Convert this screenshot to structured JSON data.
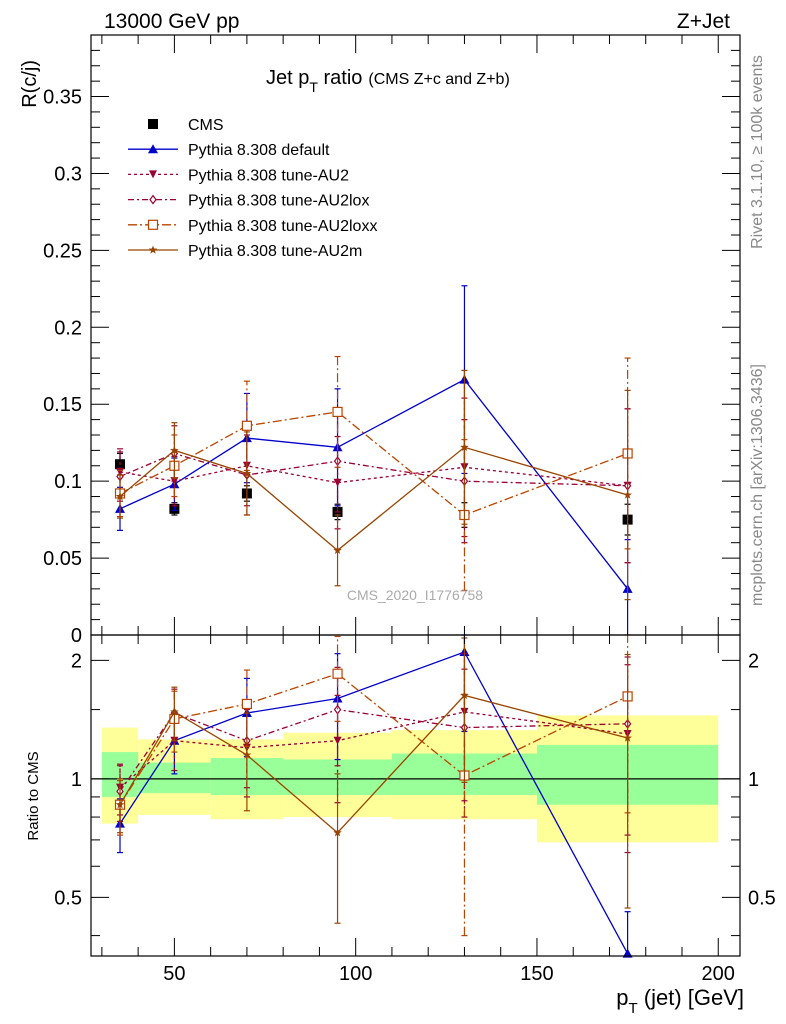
{
  "header": {
    "left": "13000 GeV pp",
    "right": "Z+Jet"
  },
  "side_labels": {
    "top": "Rivet 3.1.10, ≥ 100k events",
    "bottom": "mcplots.cern.ch [arXiv:1306.3436]"
  },
  "watermark": "CMS_2020_I1776758",
  "colors": {
    "cms": "#000000",
    "default": "#0000cc",
    "au2": "#990033",
    "au2lox": "#990033",
    "au2loxx": "#bb4400",
    "au2m": "#994400",
    "band_outer": "#ffff99",
    "band_inner": "#99ff99"
  },
  "chart_data": [
    {
      "type": "line",
      "title_main": "Jet p",
      "title_sub": "T",
      "title_rest": " ratio",
      "title_note": "(CMS  Z+c and Z+b)",
      "ylabel": "R(c/j)",
      "ylim": [
        0,
        0.39
      ],
      "yticks": [
        0,
        0.05,
        0.1,
        0.15,
        0.2,
        0.25,
        0.3,
        0.35
      ],
      "ytick_labels": [
        "0",
        "0.05",
        "0.1",
        "0.15",
        "0.2",
        "0.25",
        "0.3",
        "0.35"
      ],
      "xlim": [
        27,
        206
      ],
      "legend_position": "top-left",
      "series": [
        {
          "key": "cms",
          "name": "CMS",
          "marker": "square-filled",
          "dash": "none",
          "x": [
            35,
            50,
            70,
            95,
            130,
            175
          ],
          "y": [
            0.111,
            0.082,
            0.092,
            0.08,
            0.078,
            0.075
          ],
          "err": [
            0.007,
            0.004,
            0.005,
            0.005,
            0.008,
            0.01
          ]
        },
        {
          "key": "default",
          "name": "Pythia 8.308 default",
          "marker": "triangle-up",
          "dash": "none",
          "x": [
            35,
            50,
            70,
            95,
            130,
            175
          ],
          "y": [
            0.082,
            0.098,
            0.128,
            0.122,
            0.166,
            0.03
          ],
          "err": [
            0.014,
            0.017,
            0.029,
            0.038,
            0.061,
            0.032
          ]
        },
        {
          "key": "au2",
          "name": "Pythia 8.308 tune-AU2",
          "marker": "triangle-down",
          "dash": "3,3",
          "x": [
            35,
            50,
            70,
            95,
            130,
            175
          ],
          "y": [
            0.106,
            0.1,
            0.11,
            0.099,
            0.109,
            0.097
          ],
          "err": [
            0.015,
            0.016,
            0.026,
            0.03,
            0.045,
            0.05
          ]
        },
        {
          "key": "au2lox",
          "name": "Pythia 8.308 tune-AU2lox",
          "marker": "diamond-open",
          "dash": "6,3,2,3",
          "x": [
            35,
            50,
            70,
            95,
            130,
            175
          ],
          "y": [
            0.103,
            0.118,
            0.104,
            0.113,
            0.1,
            0.097
          ],
          "err": [
            0.016,
            0.018,
            0.026,
            0.033,
            0.04,
            0.05
          ]
        },
        {
          "key": "au2loxx",
          "name": "Pythia 8.308 tune-AU2loxx",
          "marker": "square-open",
          "dash": "9,3,2,3",
          "x": [
            35,
            50,
            70,
            95,
            130,
            175
          ],
          "y": [
            0.092,
            0.11,
            0.136,
            0.145,
            0.078,
            0.118
          ],
          "err": [
            0.015,
            0.02,
            0.029,
            0.036,
            0.049,
            0.062
          ]
        },
        {
          "key": "au2m",
          "name": "Pythia 8.308 tune-AU2m",
          "marker": "star",
          "dash": "none",
          "x": [
            35,
            50,
            70,
            95,
            130,
            175
          ],
          "y": [
            0.09,
            0.12,
            0.105,
            0.055,
            0.122,
            0.091
          ],
          "err": [
            0.014,
            0.018,
            0.027,
            0.023,
            0.05,
            0.068
          ]
        }
      ]
    },
    {
      "type": "line",
      "ylabel": "Ratio to CMS",
      "xlabel_main": "p",
      "xlabel_sub": "T",
      "xlabel_rest": " (jet) [GeV]",
      "log_y": true,
      "ylim": [
        0.355,
        2.32
      ],
      "yticks": [
        0.5,
        1,
        2
      ],
      "ytick_labels": [
        "0.5",
        "1",
        "2"
      ],
      "xlim": [
        27,
        206
      ],
      "xticks": [
        50,
        100,
        150,
        200
      ],
      "xtick_labels": [
        "50",
        "100",
        "150",
        "200"
      ],
      "reference": 1,
      "bands": [
        {
          "x": [
            30,
            40
          ],
          "outer": [
            0.77,
            1.35
          ],
          "inner": [
            0.9,
            1.17
          ]
        },
        {
          "x": [
            40,
            60
          ],
          "outer": [
            0.81,
            1.26
          ],
          "inner": [
            0.92,
            1.1
          ]
        },
        {
          "x": [
            60,
            80
          ],
          "outer": [
            0.79,
            1.26
          ],
          "inner": [
            0.91,
            1.13
          ]
        },
        {
          "x": [
            80,
            110
          ],
          "outer": [
            0.8,
            1.31
          ],
          "inner": [
            0.91,
            1.12
          ]
        },
        {
          "x": [
            110,
            150
          ],
          "outer": [
            0.79,
            1.33
          ],
          "inner": [
            0.91,
            1.16
          ]
        },
        {
          "x": [
            150,
            200
          ],
          "outer": [
            0.69,
            1.45
          ],
          "inner": [
            0.86,
            1.22
          ]
        }
      ],
      "series": [
        {
          "key": "default",
          "x": [
            35,
            50,
            70,
            95,
            130,
            175
          ],
          "y": [
            0.77,
            1.25,
            1.47,
            1.6,
            2.1,
            0.36
          ],
          "err": [
            0.12,
            0.22,
            0.33,
            0.48,
            0.78,
            0.1
          ]
        },
        {
          "key": "au2",
          "x": [
            35,
            50,
            70,
            95,
            130,
            175
          ],
          "y": [
            0.95,
            1.25,
            1.2,
            1.25,
            1.48,
            1.3
          ],
          "err": [
            0.14,
            0.2,
            0.3,
            0.38,
            0.6,
            0.65
          ]
        },
        {
          "key": "au2lox",
          "x": [
            35,
            50,
            70,
            95,
            130,
            175
          ],
          "y": [
            0.93,
            1.47,
            1.25,
            1.5,
            1.35,
            1.38
          ],
          "err": [
            0.15,
            0.22,
            0.3,
            0.42,
            0.55,
            0.66
          ]
        },
        {
          "key": "au2loxx",
          "x": [
            35,
            50,
            70,
            95,
            130,
            175
          ],
          "y": [
            0.86,
            1.42,
            1.55,
            1.85,
            1.02,
            1.62
          ],
          "err": [
            0.14,
            0.25,
            0.34,
            0.45,
            0.62,
            0.8
          ]
        },
        {
          "key": "au2m",
          "x": [
            35,
            50,
            70,
            95,
            130,
            175
          ],
          "y": [
            0.86,
            1.48,
            1.15,
            0.73,
            1.63,
            1.27
          ],
          "err": [
            0.13,
            0.23,
            0.32,
            0.3,
            0.65,
            0.8
          ]
        }
      ]
    }
  ]
}
